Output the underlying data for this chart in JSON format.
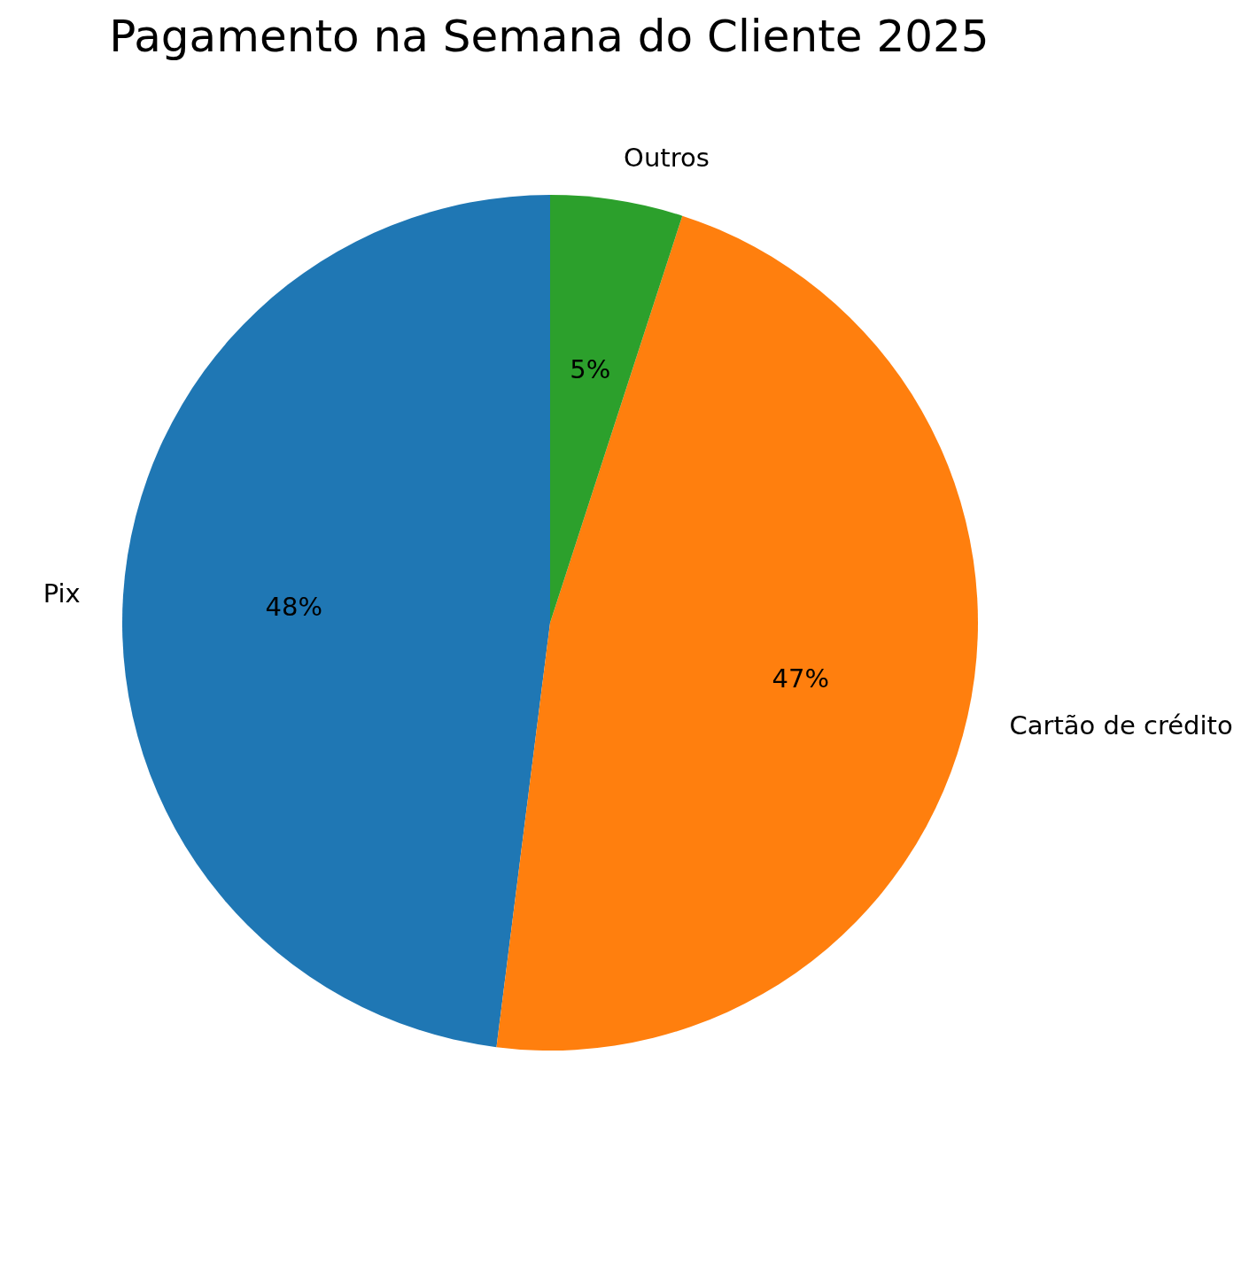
{
  "chart_data": {
    "type": "pie",
    "title": "Pagamento na Semana do Cliente 2025",
    "categories": [
      "Pix",
      "Cartão de crédito",
      "Outros"
    ],
    "values": [
      48,
      47,
      5
    ],
    "colors": [
      "#1f77b4",
      "#ff7f0e",
      "#2ca02c"
    ],
    "value_labels": [
      "48%",
      "47%",
      "5%"
    ]
  }
}
